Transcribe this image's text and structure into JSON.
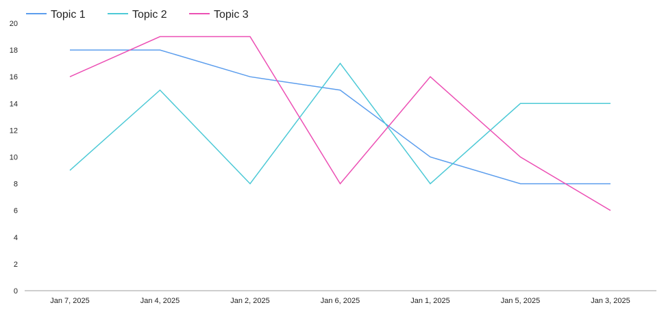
{
  "chart_data": {
    "type": "line",
    "title": "",
    "xlabel": "",
    "ylabel": "",
    "categories": [
      "Jan 7, 2025",
      "Jan 4, 2025",
      "Jan 2, 2025",
      "Jan 6, 2025",
      "Jan 1, 2025",
      "Jan 5, 2025",
      "Jan 3, 2025"
    ],
    "ylim": [
      0,
      20
    ],
    "yticks": [
      0,
      2,
      4,
      6,
      8,
      10,
      12,
      14,
      16,
      18,
      20
    ],
    "grid": false,
    "legend_position": "top-left",
    "series": [
      {
        "name": "Topic 1",
        "color": "#5b9ded",
        "values": [
          18,
          18,
          16,
          15,
          10,
          8,
          8
        ]
      },
      {
        "name": "Topic 2",
        "color": "#4cc9d6",
        "values": [
          9,
          15,
          8,
          17,
          8,
          14,
          14
        ]
      },
      {
        "name": "Topic 3",
        "color": "#ec4fb4",
        "values": [
          16,
          19,
          19,
          8,
          16,
          10,
          6
        ]
      }
    ]
  }
}
